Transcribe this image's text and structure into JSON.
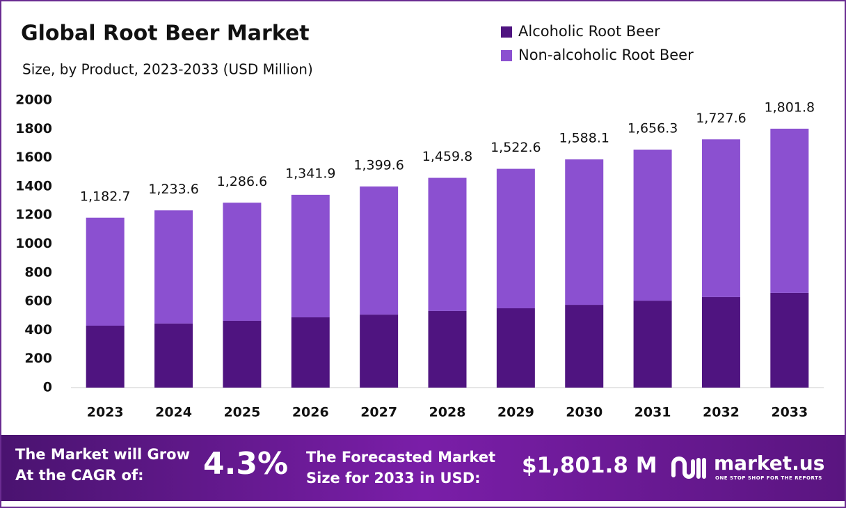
{
  "chart_data": {
    "type": "stacked-bar",
    "title": "Global Root Beer Market",
    "subtitle": "Size, by Product, 2023-2033 (USD Million)",
    "categories": [
      "2023",
      "2024",
      "2025",
      "2026",
      "2027",
      "2028",
      "2029",
      "2030",
      "2031",
      "2032",
      "2033"
    ],
    "series": [
      {
        "name": "Alcoholic Root Beer",
        "color": "#4f1480",
        "values": [
          431,
          446,
          465,
          489,
          508,
          533,
          552,
          576,
          605,
          630,
          659
        ]
      },
      {
        "name": "Non-alcoholic Root Beer",
        "color": "#8b50d0",
        "values": [
          751.7,
          787.6,
          821.6,
          852.9,
          891.6,
          926.8,
          970.6,
          1012.1,
          1051.3,
          1097.6,
          1142.8
        ]
      }
    ],
    "totals": {
      "values": [
        1182.7,
        1233.6,
        1286.6,
        1341.9,
        1399.6,
        1459.8,
        1522.6,
        1588.1,
        1656.3,
        1727.6,
        1801.8
      ],
      "value_labels": [
        "1,182.7",
        "1,233.6",
        "1,286.6",
        "1,341.9",
        "1,399.6",
        "1,459.8",
        "1,522.6",
        "1,588.1",
        "1,656.3",
        "1,727.6",
        "1,801.8"
      ]
    },
    "ylim": [
      0,
      2000
    ],
    "yticks": [
      0,
      200,
      400,
      600,
      800,
      1000,
      1200,
      1400,
      1600,
      1800,
      2000
    ],
    "grid": false,
    "legend": "top-right"
  },
  "footer": {
    "cagr_line1": "The Market will Grow",
    "cagr_line2": "At the CAGR of:",
    "cagr_value": "4.3%",
    "forecast_line1": "The Forecasted Market",
    "forecast_line2": "Size for 2033 in USD:",
    "forecast_value": "$1,801.8 M",
    "brand": "market.us",
    "tagline": "ONE STOP SHOP FOR THE REPORTS"
  }
}
